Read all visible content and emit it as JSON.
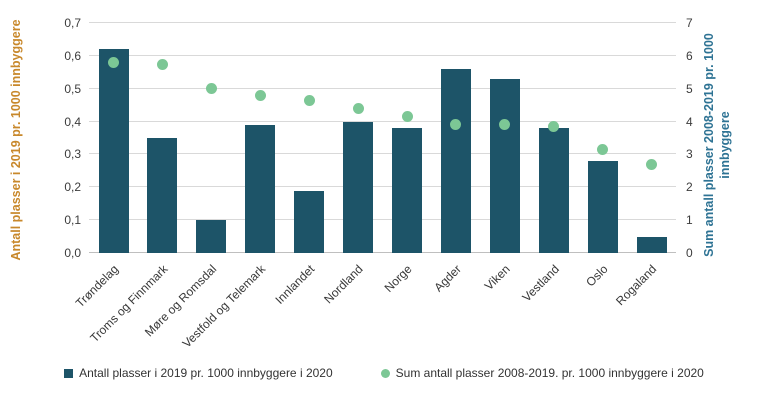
{
  "chart_data": {
    "type": "bar",
    "title": "",
    "categories": [
      "Trøndelag",
      "Troms og Finnmark",
      "Møre og Romsdal",
      "Vestfold og Telemark",
      "Innlandet",
      "Nordland",
      "Norge",
      "Agder",
      "Viken",
      "Vestland",
      "Oslo",
      "Rogaland"
    ],
    "series": [
      {
        "name": "Antall plasser i 2019 pr. 1000 innbyggere i 2020",
        "type": "bar",
        "axis": "left",
        "color": "#1d5468",
        "values": [
          0.62,
          0.35,
          0.1,
          0.39,
          0.19,
          0.4,
          0.38,
          0.56,
          0.53,
          0.38,
          0.28,
          0.05
        ]
      },
      {
        "name": "Sum antall plasser 2008-2019. pr. 1000 innbyggere i 2020",
        "type": "scatter",
        "axis": "right",
        "color": "#7cc795",
        "values": [
          5.8,
          5.75,
          5.0,
          4.8,
          4.65,
          4.4,
          4.15,
          3.9,
          3.9,
          3.85,
          3.15,
          2.7
        ]
      }
    ],
    "left_axis": {
      "title": "Antall plasser i 2019 pr. 1000 innbyggere",
      "color": "#c8882b",
      "min": 0,
      "max": 0.7,
      "tick_labels": [
        "0,0",
        "0,1",
        "0,2",
        "0,3",
        "0,4",
        "0,5",
        "0,6",
        "0,7"
      ]
    },
    "right_axis": {
      "title": "Sum antall plasser 2008-2019 pr. 1000 innbyggere",
      "color": "#2e7394",
      "min": 0,
      "max": 7,
      "tick_labels": [
        "0",
        "1",
        "2",
        "3",
        "4",
        "5",
        "6",
        "7"
      ]
    },
    "grid": true,
    "legend_position": "bottom"
  }
}
